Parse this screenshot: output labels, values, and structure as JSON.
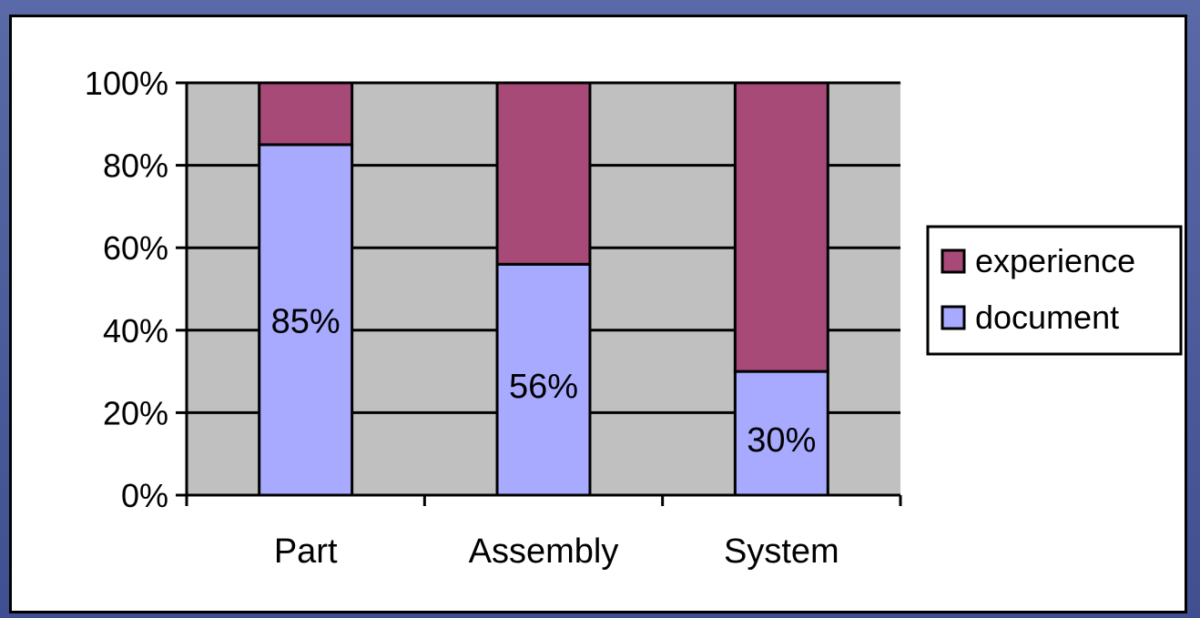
{
  "chart_data": {
    "type": "bar",
    "stacked": true,
    "percent_stacked": true,
    "categories": [
      "Part",
      "Assembly",
      "System"
    ],
    "series": [
      {
        "name": "document",
        "values": [
          85,
          56,
          30
        ],
        "color": "#a8aaff"
      },
      {
        "name": "experience",
        "values": [
          15,
          44,
          70
        ],
        "color": "#a84a78"
      }
    ],
    "data_labels": [
      "85%",
      "56%",
      "30%"
    ],
    "y_ticks": [
      "0%",
      "20%",
      "40%",
      "60%",
      "80%",
      "100%"
    ],
    "ylim": [
      0,
      100
    ],
    "grid": true,
    "plot_background": "#c0c0c0",
    "legend": {
      "placement": "right",
      "entries": [
        "experience",
        "document"
      ]
    }
  }
}
